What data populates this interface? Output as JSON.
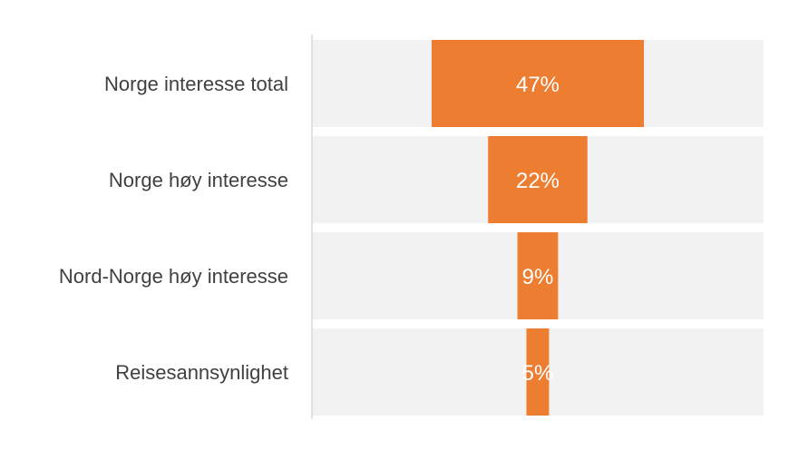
{
  "chart_data": {
    "type": "bar",
    "subtype": "funnel",
    "title": "",
    "xlabel": "",
    "ylabel": "",
    "categories": [
      "Norge interesse total",
      "Norge høy interesse",
      "Nord-Norge høy interesse",
      "Reisesannsynlighet"
    ],
    "series": [
      {
        "values": [
          47,
          22,
          9,
          5
        ],
        "data_labels": [
          "47%",
          "22%",
          "9%",
          "5%"
        ]
      }
    ],
    "xlim": [
      0,
      100
    ],
    "unit": "%",
    "grid": false,
    "legend": "none",
    "colors": {
      "bar": "#ED7D31",
      "track": "#F2F2F2",
      "axis": "#D9D9D9",
      "category_text": "#404040",
      "data_label_text": "#FFFFFF"
    }
  }
}
